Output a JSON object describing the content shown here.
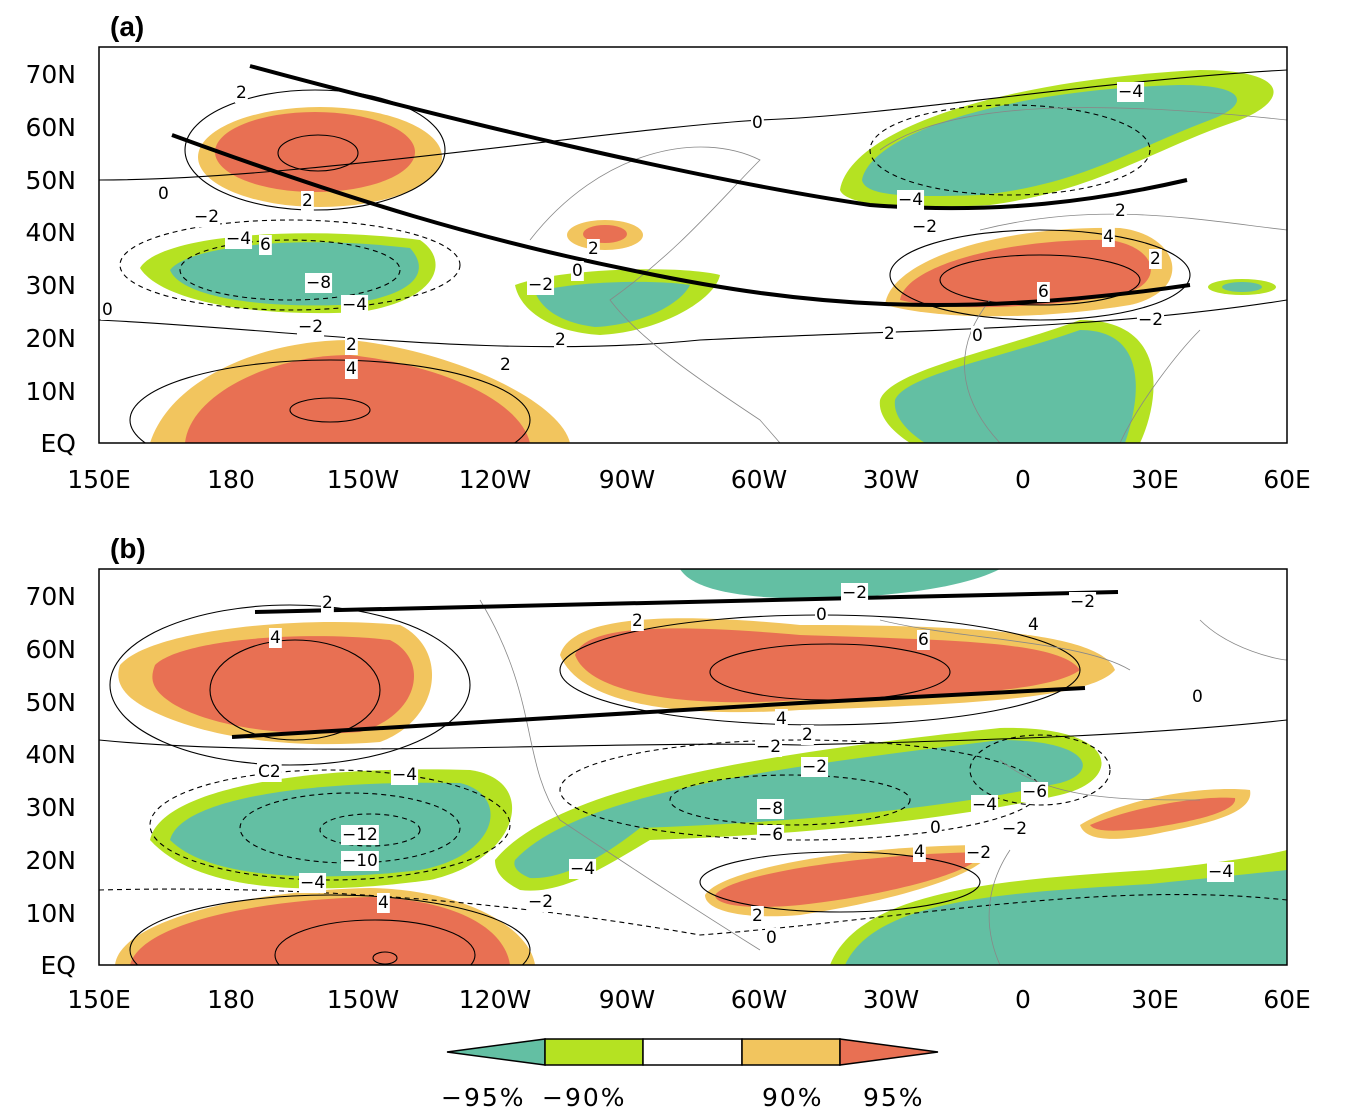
{
  "figure": {
    "panels": [
      {
        "label": "(a)",
        "contour_labels": [
          "2",
          "0",
          "2",
          "0",
          "-2",
          "-4",
          "6",
          "-8",
          "-4",
          "-2",
          "2",
          "4",
          "2",
          "0",
          "-2",
          "2",
          "-2",
          "2",
          "-4",
          "-4",
          "2",
          "4",
          "2",
          "6",
          "0",
          "2",
          "-2",
          "0"
        ]
      },
      {
        "label": "(b)",
        "contour_labels": [
          "2",
          "4",
          "2",
          "0",
          "4",
          "6",
          "-2",
          "-2",
          "0",
          "4",
          "2",
          "-2",
          "-2",
          "C2",
          "-4",
          "-12",
          "-10",
          "-4",
          "4",
          "-4",
          "-8",
          "-6",
          "-6",
          "-4",
          "-2",
          "0",
          "-2",
          "4",
          "-2",
          "2",
          "0",
          "-4"
        ]
      }
    ],
    "lat_ticks": [
      "70N",
      "60N",
      "50N",
      "40N",
      "30N",
      "20N",
      "10N",
      "EQ"
    ],
    "lon_ticks": [
      "150E",
      "180",
      "150W",
      "120W",
      "90W",
      "60W",
      "30W",
      "0",
      "30E",
      "60E"
    ],
    "colorbar": {
      "labels": [
        "-95%",
        "-90%",
        "90%",
        "95%"
      ],
      "colors": {
        "neg95": "#63bfa3",
        "neg90": "#b5e222",
        "neutral": "#ffffff",
        "pos90": "#f2c55e",
        "pos95": "#e87053"
      }
    }
  }
}
